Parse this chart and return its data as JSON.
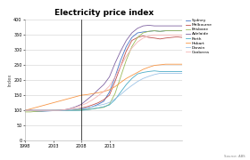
{
  "title": "Electricity price index",
  "ylabel": "Index",
  "source": "Source: ABS",
  "x_values": [
    0,
    1,
    2,
    3,
    4,
    5,
    6,
    7,
    8,
    9,
    10,
    11,
    12,
    13,
    14,
    15,
    16,
    17,
    18,
    19,
    20,
    21,
    22,
    23,
    24,
    25,
    26,
    27,
    28
  ],
  "xtick_labels": [
    "1998",
    "2003",
    "2008",
    "2013"
  ],
  "xtick_positions": [
    0,
    5,
    10,
    15
  ],
  "vline_x": 10,
  "xlim": [
    0,
    15
  ],
  "ylim": [
    0,
    400
  ],
  "yticks": [
    0,
    50,
    100,
    150,
    200,
    250,
    300,
    350,
    400
  ],
  "series": {
    "Sydney": [
      100,
      100,
      97,
      97,
      98,
      99,
      100,
      101,
      102,
      103,
      104,
      107,
      112,
      120,
      130,
      160,
      210,
      265,
      310,
      340,
      355,
      358,
      360,
      362,
      360,
      362,
      362,
      362,
      362
    ],
    "Melbourne": [
      100,
      100,
      100,
      100,
      100,
      100,
      100,
      100,
      102,
      104,
      108,
      112,
      118,
      125,
      135,
      150,
      195,
      245,
      295,
      330,
      340,
      345,
      340,
      338,
      335,
      338,
      340,
      342,
      340
    ],
    "Brisbane": [
      95,
      95,
      97,
      98,
      99,
      100,
      100,
      100,
      101,
      101,
      102,
      103,
      105,
      108,
      110,
      120,
      155,
      210,
      265,
      310,
      340,
      355,
      360,
      362,
      360,
      362,
      362,
      362,
      362
    ],
    "Adelaide": [
      100,
      100,
      100,
      100,
      100,
      100,
      100,
      102,
      106,
      112,
      120,
      135,
      150,
      168,
      185,
      210,
      255,
      295,
      330,
      355,
      370,
      378,
      380,
      378,
      378,
      378,
      378,
      378,
      378
    ],
    "Perth": [
      100,
      100,
      100,
      100,
      100,
      100,
      100,
      100,
      100,
      100,
      100,
      102,
      105,
      108,
      112,
      118,
      135,
      160,
      185,
      205,
      220,
      225,
      228,
      230,
      228,
      228,
      228,
      228,
      228
    ],
    "Hobart": [
      100,
      105,
      110,
      115,
      120,
      125,
      130,
      135,
      140,
      145,
      150,
      152,
      155,
      158,
      162,
      168,
      178,
      192,
      205,
      215,
      225,
      235,
      242,
      248,
      250,
      252,
      252,
      252,
      252
    ],
    "Darwin": [
      100,
      100,
      100,
      100,
      100,
      100,
      100,
      100,
      102,
      104,
      106,
      108,
      112,
      116,
      120,
      126,
      138,
      152,
      168,
      182,
      195,
      205,
      212,
      218,
      222,
      222,
      222,
      222,
      222
    ],
    "Canberra": [
      100,
      100,
      100,
      100,
      100,
      100,
      100,
      102,
      105,
      110,
      116,
      124,
      135,
      148,
      162,
      180,
      210,
      245,
      278,
      305,
      325,
      338,
      345,
      348,
      348,
      348,
      348,
      348,
      348
    ]
  },
  "colors": {
    "Sydney": "#4472c4",
    "Melbourne": "#c0504d",
    "Brisbane": "#9bbb59",
    "Adelaide": "#8064a2",
    "Perth": "#4bacc6",
    "Hobart": "#f79646",
    "Darwin": "#9dc3e6",
    "Canberra": "#f4b4b4"
  },
  "background_color": "#ffffff",
  "grid_color": "#d0d0d0"
}
